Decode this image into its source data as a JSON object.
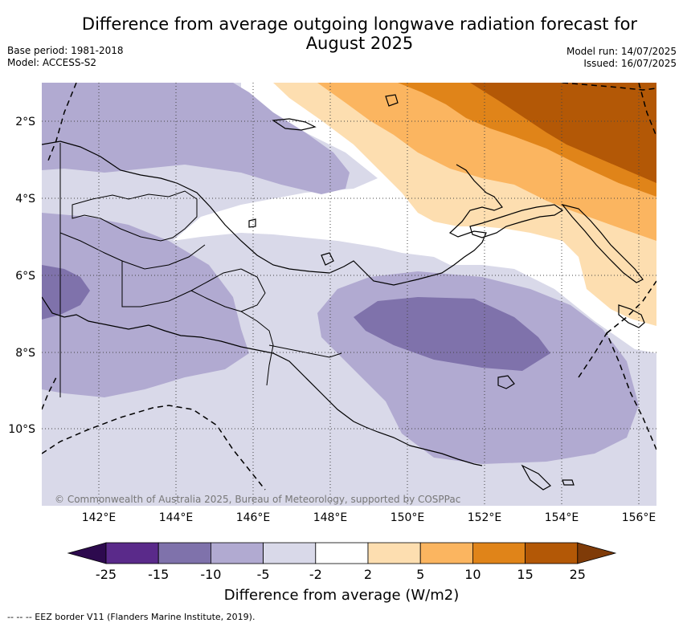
{
  "header": {
    "title_line1": "Difference from average outgoing longwave radiation forecast for",
    "title_line2": "August 2025",
    "base_period": "Base period: 1981-2018",
    "model": "Model: ACCESS-S2",
    "model_run": "Model run: 14/07/2025",
    "issued": "Issued: 16/07/2025"
  },
  "map": {
    "lat_labels": [
      "2°S",
      "4°S",
      "6°S",
      "8°S",
      "10°S"
    ],
    "lon_labels": [
      "142°E",
      "144°E",
      "146°E",
      "148°E",
      "150°E",
      "152°E",
      "154°E",
      "156°E"
    ],
    "credit": "© Commonwealth of Australia 2025, Bureau of Meteorology, supported by COSPPac"
  },
  "colorbar": {
    "ticks": [
      "-25",
      "-15",
      "-10",
      "-5",
      "-2",
      "2",
      "5",
      "10",
      "15",
      "25"
    ],
    "colors": [
      "#2d0a4e",
      "#5a2a8a",
      "#7f72ab",
      "#b1aad1",
      "#d9d9e9",
      "#ffffff",
      "#fddeb0",
      "#fbb560",
      "#e08419",
      "#b35806",
      "#7f3b08"
    ],
    "title": "Difference from average (W/m2)"
  },
  "footer": {
    "eez_legend": "--  --  -- EEZ border V11 (Flanders Marine Institute, 2019)."
  }
}
